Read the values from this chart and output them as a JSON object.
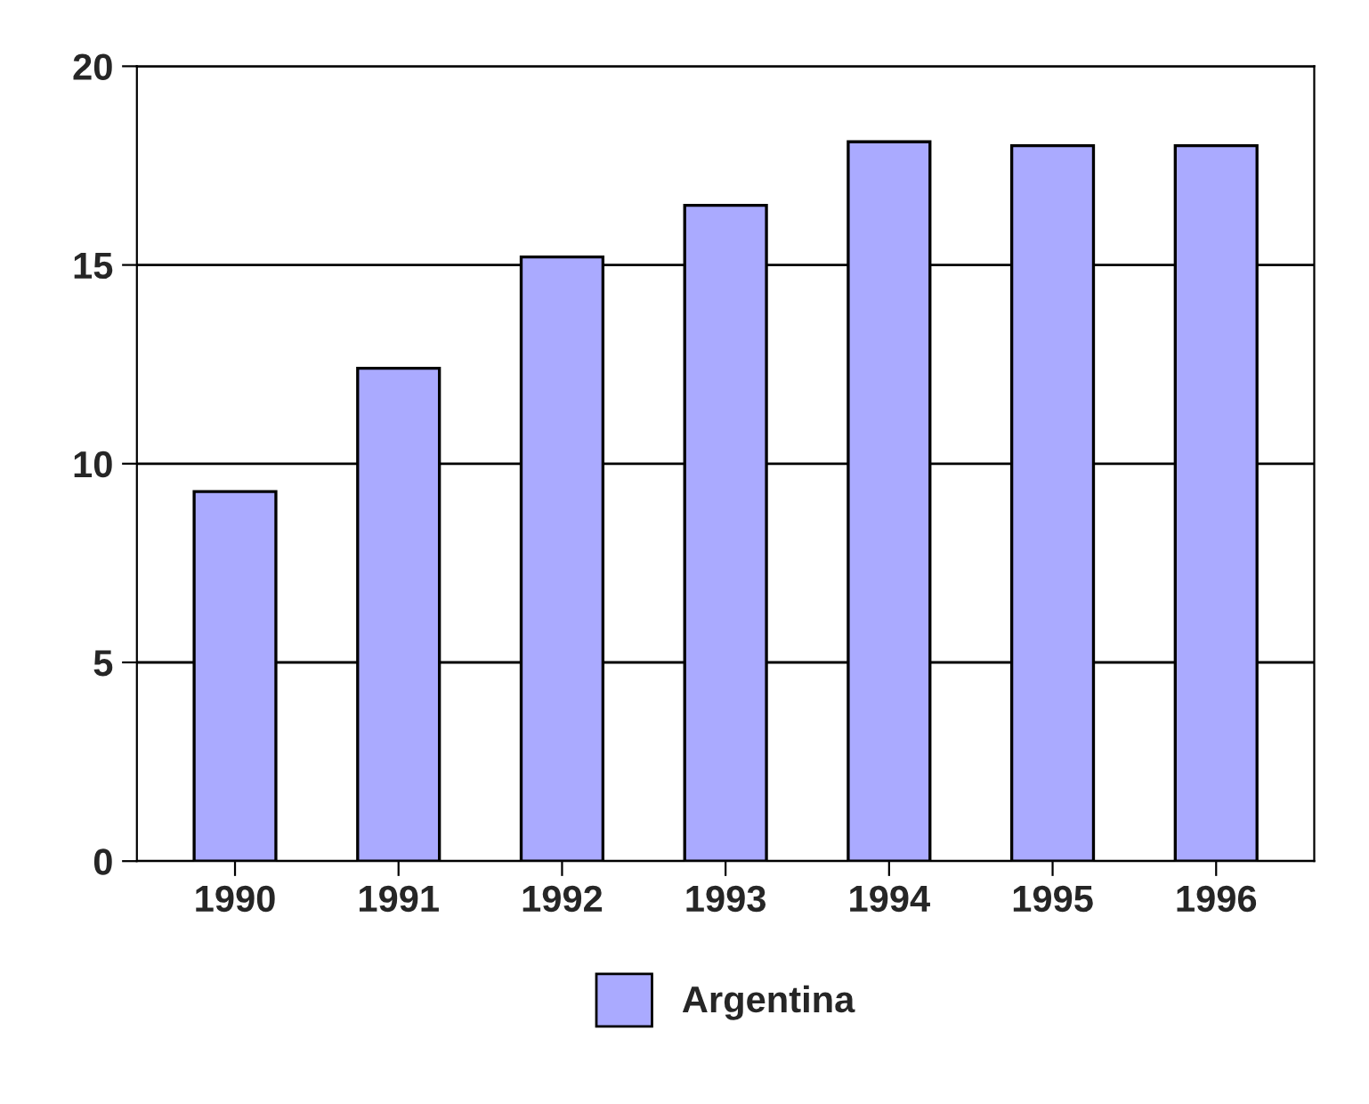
{
  "chart_data": {
    "type": "bar",
    "categories": [
      "1990",
      "1991",
      "1992",
      "1993",
      "1994",
      "1995",
      "1996"
    ],
    "series": [
      {
        "name": "Argentina",
        "color": "#aaaaff",
        "values": [
          9.3,
          12.4,
          15.2,
          16.5,
          18.1,
          18.0,
          18.0
        ]
      }
    ],
    "ylim": [
      0,
      20
    ],
    "yticks": [
      0,
      5,
      10,
      15,
      20
    ],
    "grid": "y",
    "legend": "bottom"
  }
}
